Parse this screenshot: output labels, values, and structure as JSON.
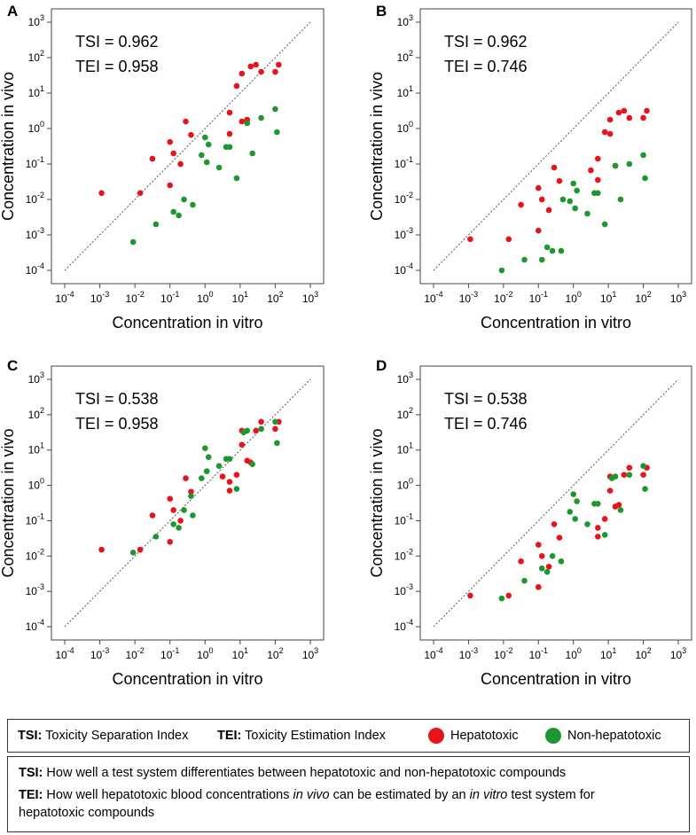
{
  "colors": {
    "hepatotoxic": "#e8141c",
    "non_hepatotoxic": "#1e9632",
    "diagonal": "#555555"
  },
  "chart_data": [
    {
      "panel": "A",
      "type": "scatter",
      "log_scale": true,
      "xlabel": "Concentration in vitro",
      "ylabel": "Concentration in vivo",
      "xlim": [
        -4,
        3
      ],
      "ylim": [
        -4,
        3
      ],
      "x_ticks": [
        "10^-4",
        "10^-3",
        "10^-2",
        "10^-1",
        "10^0",
        "10^1",
        "10^2",
        "10^3"
      ],
      "y_ticks": [
        "10^-4",
        "10^-3",
        "10^-2",
        "10^-1",
        "10^0",
        "10^1",
        "10^2",
        "10^3"
      ],
      "annotations": [
        "TSI = 0.962",
        "TEI = 0.958"
      ],
      "series": [
        {
          "name": "Hepatotoxic",
          "log10_points": [
            [
              -2.95,
              -1.82
            ],
            [
              -1.85,
              -1.82
            ],
            [
              -1.5,
              -0.85
            ],
            [
              -1,
              -1.6
            ],
            [
              -1,
              -0.38
            ],
            [
              -0.9,
              -0.7
            ],
            [
              -0.7,
              -1
            ],
            [
              -0.55,
              0.2
            ],
            [
              -0.4,
              -0.18
            ],
            [
              0.7,
              -0.15
            ],
            [
              0.7,
              0.45
            ],
            [
              0.9,
              1.2
            ],
            [
              1.05,
              1.55
            ],
            [
              1.2,
              0.25
            ],
            [
              1.3,
              1.75
            ],
            [
              1.45,
              1.8
            ],
            [
              1.6,
              1.6
            ],
            [
              2,
              1.6
            ],
            [
              2.1,
              1.8
            ],
            [
              1.05,
              0.2
            ]
          ]
        },
        {
          "name": "Non-hepatotoxic",
          "log10_points": [
            [
              -2.05,
              -3.2
            ],
            [
              -1.4,
              -2.7
            ],
            [
              -0.9,
              -2.35
            ],
            [
              -0.75,
              -2.45
            ],
            [
              -0.6,
              -2
            ],
            [
              -0.35,
              -2.15
            ],
            [
              -0.1,
              -0.75
            ],
            [
              0,
              -0.25
            ],
            [
              0.05,
              -0.95
            ],
            [
              0.1,
              -0.45
            ],
            [
              0.4,
              -1.1
            ],
            [
              0.6,
              -0.52
            ],
            [
              0.7,
              -0.52
            ],
            [
              0.9,
              -1.4
            ],
            [
              1.2,
              0.15
            ],
            [
              1.35,
              -0.7
            ],
            [
              1.6,
              0.3
            ],
            [
              2,
              0.55
            ],
            [
              2.05,
              -0.1
            ]
          ]
        }
      ]
    },
    {
      "panel": "B",
      "type": "scatter",
      "log_scale": true,
      "xlabel": "Concentration in vitro",
      "ylabel": "Concentration in vivo",
      "xlim": [
        -4,
        3
      ],
      "ylim": [
        -4,
        3
      ],
      "x_ticks": [
        "10^-4",
        "10^-3",
        "10^-2",
        "10^-1",
        "10^0",
        "10^1",
        "10^2",
        "10^3"
      ],
      "y_ticks": [
        "10^-4",
        "10^-3",
        "10^-2",
        "10^-1",
        "10^0",
        "10^1",
        "10^2",
        "10^3"
      ],
      "annotations": [
        "TSI = 0.962",
        "TEI = 0.746"
      ],
      "series": [
        {
          "name": "Hepatotoxic",
          "log10_points": [
            [
              -2.95,
              -3.12
            ],
            [
              -1.85,
              -3.12
            ],
            [
              -1.5,
              -2.15
            ],
            [
              -1,
              -2.88
            ],
            [
              -1,
              -1.68
            ],
            [
              -0.9,
              -2
            ],
            [
              -0.7,
              -2.3
            ],
            [
              -0.55,
              -1.1
            ],
            [
              -0.4,
              -1.48
            ],
            [
              0.7,
              -1.45
            ],
            [
              0.7,
              -0.85
            ],
            [
              0.9,
              -0.1
            ],
            [
              1.05,
              0.25
            ],
            [
              1.2,
              -1.05
            ],
            [
              1.3,
              0.45
            ],
            [
              1.45,
              0.5
            ],
            [
              1.6,
              0.3
            ],
            [
              2,
              0.3
            ],
            [
              2.1,
              0.5
            ],
            [
              1.05,
              -0.15
            ],
            [
              0.5,
              -1.18
            ]
          ]
        },
        {
          "name": "Non-hepatotoxic",
          "log10_points": [
            [
              -2.05,
              -4
            ],
            [
              -1.4,
              -3.7
            ],
            [
              -0.9,
              -3.7
            ],
            [
              -0.75,
              -3.35
            ],
            [
              -0.6,
              -3.45
            ],
            [
              -0.35,
              -3.45
            ],
            [
              -0.1,
              -2.05
            ],
            [
              0,
              -1.55
            ],
            [
              0.05,
              -2.25
            ],
            [
              0.1,
              -1.75
            ],
            [
              0.4,
              -2.4
            ],
            [
              0.6,
              -1.82
            ],
            [
              0.7,
              -1.82
            ],
            [
              0.9,
              -2.7
            ],
            [
              1.2,
              -1.05
            ],
            [
              1.35,
              -2
            ],
            [
              1.6,
              -1
            ],
            [
              2,
              -0.75
            ],
            [
              2.05,
              -1.4
            ],
            [
              -0.3,
              -2
            ]
          ]
        }
      ]
    },
    {
      "panel": "C",
      "type": "scatter",
      "log_scale": true,
      "xlabel": "Concentration in vitro",
      "ylabel": "Concentration in vivo",
      "xlim": [
        -4,
        3
      ],
      "ylim": [
        -4,
        3
      ],
      "x_ticks": [
        "10^-4",
        "10^-3",
        "10^-2",
        "10^-1",
        "10^0",
        "10^1",
        "10^2",
        "10^3"
      ],
      "y_ticks": [
        "10^-4",
        "10^-3",
        "10^-2",
        "10^-1",
        "10^0",
        "10^1",
        "10^2",
        "10^3"
      ],
      "annotations": [
        "TSI = 0.538",
        "TEI = 0.958"
      ],
      "series": [
        {
          "name": "Hepatotoxic",
          "log10_points": [
            [
              -2.95,
              -1.82
            ],
            [
              -1.85,
              -1.82
            ],
            [
              -1.5,
              -0.85
            ],
            [
              -1,
              -1.6
            ],
            [
              -1,
              -0.38
            ],
            [
              -0.9,
              -0.7
            ],
            [
              -0.7,
              -1
            ],
            [
              -0.55,
              0.2
            ],
            [
              -0.4,
              -0.18
            ],
            [
              0.7,
              -0.15
            ],
            [
              0.7,
              0.1
            ],
            [
              0.9,
              0.3
            ],
            [
              1.05,
              1.15
            ],
            [
              1.2,
              0.7
            ],
            [
              1.3,
              0.65
            ],
            [
              1.45,
              1.55
            ],
            [
              1.6,
              1.8
            ],
            [
              2,
              1.6
            ],
            [
              2.1,
              1.8
            ],
            [
              1.05,
              1.55
            ],
            [
              0.5,
              0.25
            ]
          ]
        },
        {
          "name": "Non-hepatotoxic",
          "log10_points": [
            [
              -2.05,
              -1.9
            ],
            [
              -1.4,
              -1.45
            ],
            [
              -0.9,
              -1.1
            ],
            [
              -0.75,
              -1.2
            ],
            [
              -0.6,
              -0.7
            ],
            [
              -0.35,
              -0.85
            ],
            [
              -0.1,
              0.2
            ],
            [
              0,
              1.05
            ],
            [
              0.05,
              0.4
            ],
            [
              0.1,
              0.8
            ],
            [
              0.4,
              0.55
            ],
            [
              0.6,
              0.75
            ],
            [
              0.7,
              0.75
            ],
            [
              0.9,
              -0.1
            ],
            [
              1.2,
              1.55
            ],
            [
              1.35,
              0.6
            ],
            [
              1.6,
              1.6
            ],
            [
              2,
              1.8
            ],
            [
              2.05,
              1.2
            ],
            [
              -0.4,
              -0.3
            ],
            [
              1.1,
              1.5
            ]
          ]
        }
      ]
    },
    {
      "panel": "D",
      "type": "scatter",
      "log_scale": true,
      "xlabel": "Concentration in vitro",
      "ylabel": "Concentration in vivo",
      "xlim": [
        -4,
        3
      ],
      "ylim": [
        -4,
        3
      ],
      "x_ticks": [
        "10^-4",
        "10^-3",
        "10^-2",
        "10^-1",
        "10^0",
        "10^1",
        "10^2",
        "10^3"
      ],
      "y_ticks": [
        "10^-4",
        "10^-3",
        "10^-2",
        "10^-1",
        "10^0",
        "10^1",
        "10^2",
        "10^3"
      ],
      "annotations": [
        "TSI = 0.538",
        "TEI = 0.746"
      ],
      "series": [
        {
          "name": "Hepatotoxic",
          "log10_points": [
            [
              -2.95,
              -3.12
            ],
            [
              -1.85,
              -3.12
            ],
            [
              -1.5,
              -2.15
            ],
            [
              -1,
              -2.88
            ],
            [
              -1,
              -1.68
            ],
            [
              -0.9,
              -2
            ],
            [
              -0.7,
              -2.3
            ],
            [
              -0.55,
              -1.1
            ],
            [
              -0.4,
              -1.48
            ],
            [
              0.7,
              -1.45
            ],
            [
              0.7,
              -1.2
            ],
            [
              0.9,
              -0.95
            ],
            [
              1.05,
              -0.15
            ],
            [
              1.2,
              -0.6
            ],
            [
              1.3,
              -0.55
            ],
            [
              1.45,
              0.3
            ],
            [
              1.6,
              0.5
            ],
            [
              2,
              0.3
            ],
            [
              2.1,
              0.5
            ],
            [
              1.05,
              0.25
            ]
          ]
        },
        {
          "name": "Non-hepatotoxic",
          "log10_points": [
            [
              -2.05,
              -3.2
            ],
            [
              -1.4,
              -2.7
            ],
            [
              -0.9,
              -2.35
            ],
            [
              -0.75,
              -2.45
            ],
            [
              -0.6,
              -2
            ],
            [
              -0.35,
              -2.15
            ],
            [
              -0.1,
              -0.75
            ],
            [
              0,
              -0.25
            ],
            [
              0.05,
              -0.95
            ],
            [
              0.1,
              -0.45
            ],
            [
              0.4,
              -1.1
            ],
            [
              0.6,
              -0.52
            ],
            [
              0.7,
              -0.52
            ],
            [
              0.9,
              -1.4
            ],
            [
              1.2,
              0.25
            ],
            [
              1.35,
              -0.7
            ],
            [
              1.6,
              0.3
            ],
            [
              2,
              0.55
            ],
            [
              2.05,
              -0.1
            ],
            [
              1.1,
              0.2
            ]
          ]
        }
      ]
    }
  ],
  "legend": {
    "tsi_abbr": "TSI:",
    "tsi_full": "Toxicity Separation Index",
    "tei_abbr": "TEI:",
    "tei_full": "Toxicity Estimation Index",
    "hepatotoxic": "Hepatotoxic",
    "non_hepatotoxic": "Non-hepatotoxic"
  },
  "definitions": {
    "tsi_abbr": "TSI:",
    "tsi_text": "How well a test system differentiates between hepatotoxic and non-hepatotoxic compounds",
    "tei_abbr": "TEI:",
    "tei_text_1": "How well hepatotoxic blood concentrations",
    "tei_in_vivo": "in vivo",
    "tei_text_2": "can be estimated by an",
    "tei_in_vitro": "in vitro",
    "tei_text_3": "test system for",
    "tei_text_4": "hepatotoxic compounds"
  }
}
